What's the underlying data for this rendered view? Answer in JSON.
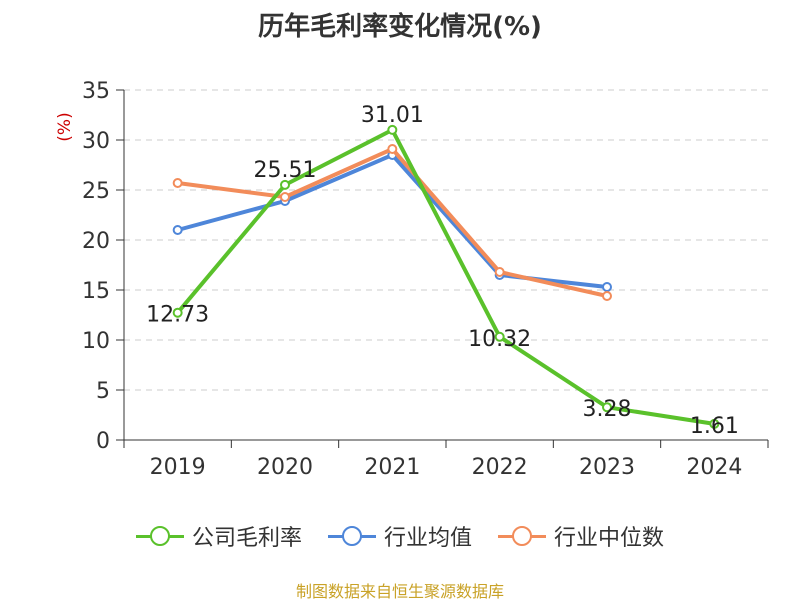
{
  "title": "历年毛利率变化情况(%)",
  "source": "制图数据来自恒生聚源数据库",
  "source_color": "#c9a227",
  "chart_data": {
    "type": "line",
    "title": "历年毛利率变化情况(%)",
    "ylabel": "(%)",
    "ylabel_color": "#cc0000",
    "categories": [
      "2019",
      "2020",
      "2021",
      "2022",
      "2023",
      "2024"
    ],
    "ylim": [
      0,
      35
    ],
    "yticks": [
      0,
      5,
      10,
      15,
      20,
      25,
      30,
      35
    ],
    "grid": true,
    "legend_position": "bottom",
    "series": [
      {
        "name": "公司毛利率",
        "color": "#5ac12b",
        "values": [
          12.73,
          25.51,
          31.01,
          10.32,
          3.28,
          1.61
        ],
        "labels": [
          "12.73",
          "25.51",
          "31.01",
          "10.32",
          "3.28",
          "1.61"
        ]
      },
      {
        "name": "行业均值",
        "color": "#4e86d9",
        "values": [
          21.0,
          23.9,
          28.5,
          16.5,
          15.3,
          null
        ]
      },
      {
        "name": "行业中位数",
        "color": "#f28c5a",
        "values": [
          25.7,
          24.3,
          29.1,
          16.8,
          14.4,
          null
        ]
      }
    ]
  }
}
